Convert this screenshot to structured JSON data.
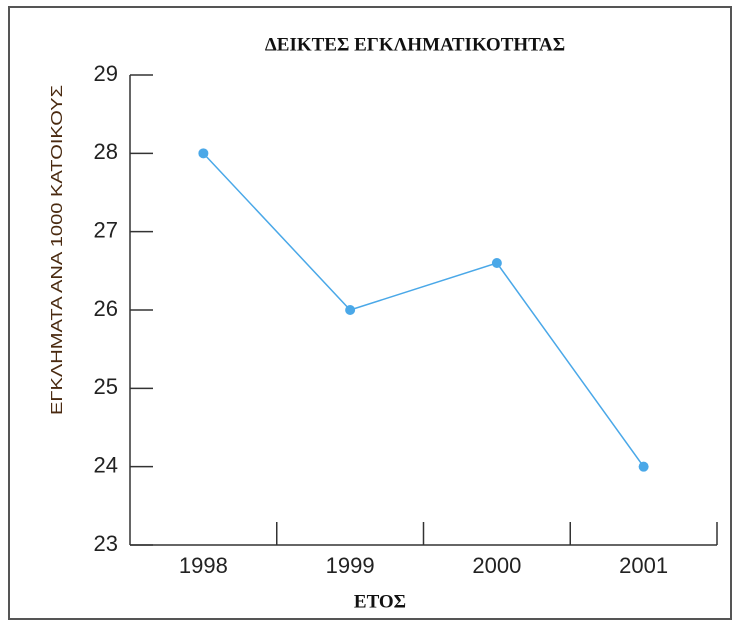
{
  "chart_data": {
    "type": "line",
    "title": "ΔΕΙΚΤΕΣ ΕΓΚΛΗΜΑΤΙΚΟΤΗΤΑΣ",
    "x_label": "ΕΤΟΣ",
    "y_label": "ΕΓΚΛΗΜΑΤΑ ΑΝΑ 1000 ΚΑΤΟΙΚΟΥΣ",
    "categories": [
      "1998",
      "1999",
      "2000",
      "2001"
    ],
    "series": [
      {
        "name": "ΔΕΙΚΤΕΣ ΕΓΚΛΗΜΑΤΙΚΟΤΗΤΑΣ",
        "color": "#4aa8e8",
        "values": [
          28,
          26,
          26.6,
          24
        ]
      }
    ],
    "ylim": [
      23,
      29
    ],
    "yticks": [
      23,
      24,
      25,
      26,
      27,
      28,
      29
    ]
  }
}
